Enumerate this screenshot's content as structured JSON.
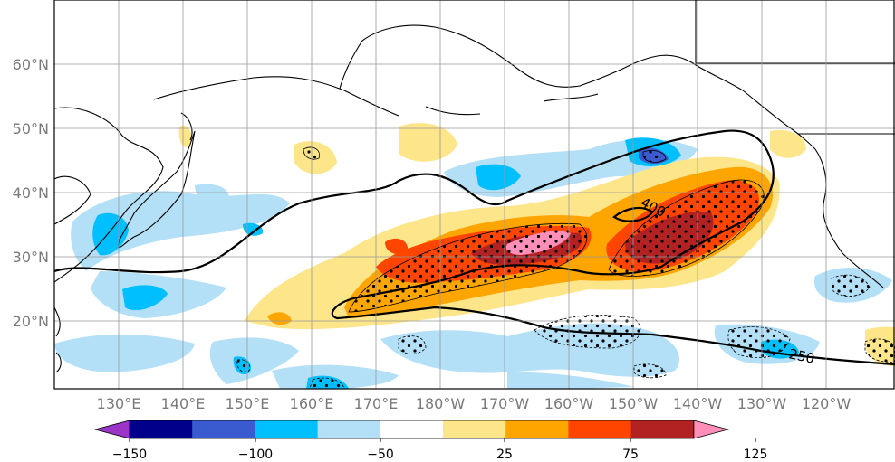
{
  "map": {
    "lat_labels": [
      "60°N",
      "50°N",
      "40°N",
      "30°N",
      "20°N"
    ],
    "lon_labels": [
      "130°E",
      "140°E",
      "150°E",
      "160°E",
      "170°E",
      "180°W",
      "170°W",
      "160°W",
      "150°W",
      "140°W",
      "130°W",
      "120°W"
    ],
    "contour_labels": [
      "400",
      "250"
    ]
  },
  "colorbar": {
    "tick_labels": [
      "−150",
      "−100",
      "−50",
      "25",
      "75",
      "125"
    ],
    "colors": [
      "#9a35c8",
      "#00008b",
      "#3a5bd0",
      "#00bfff",
      "#b3e0f7",
      "#ffffff",
      "#fde58a",
      "#ffa500",
      "#ff4500",
      "#b22222",
      "#ff8fb8"
    ]
  }
}
